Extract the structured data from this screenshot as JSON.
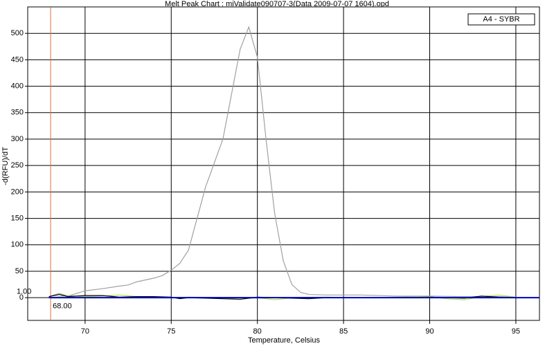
{
  "chart_data": {
    "type": "line",
    "title": "Melt Peak Chart : miValidate090707-3(Data 2009-07-07 1604).opd",
    "xlabel": "Temperature, Celsius",
    "ylabel": "-d(RFU)/dT",
    "xlim": [
      66.67,
      96.37
    ],
    "ylim": [
      -43,
      550
    ],
    "xticks": [
      70,
      75,
      80,
      85,
      90,
      95
    ],
    "yticks": [
      0,
      50,
      100,
      150,
      200,
      250,
      300,
      350,
      400,
      450,
      500
    ],
    "grid": true,
    "legend": "top-right",
    "threshold": {
      "x": 68,
      "x_label": "68.00",
      "y": 1,
      "y_label": "1.00",
      "color": "#e07040"
    },
    "series": [
      {
        "name": "A4 - SYBR",
        "color": "#a0a0a0",
        "x": [
          68,
          68.5,
          69,
          69.5,
          70,
          71,
          72,
          72.5,
          73,
          74,
          74.5,
          75,
          75.5,
          76,
          76.5,
          77,
          77.5,
          78,
          78.5,
          79,
          79.5,
          80,
          80.5,
          81,
          81.5,
          82,
          82.5,
          83,
          84,
          86,
          88,
          90,
          92,
          94,
          95
        ],
        "values": [
          3,
          8,
          3,
          8,
          13,
          17,
          22,
          24,
          30,
          37,
          42,
          52,
          65,
          90,
          150,
          210,
          255,
          300,
          385,
          470,
          512,
          455,
          300,
          160,
          70,
          25,
          10,
          6,
          5,
          5,
          3,
          3,
          2,
          2,
          1
        ]
      },
      {
        "color": "#a8e040",
        "x": [
          68,
          69,
          70,
          71,
          72,
          73,
          74,
          75,
          76,
          78,
          79,
          80,
          81,
          82,
          84,
          86,
          88,
          90,
          91,
          92,
          93,
          94,
          95
        ],
        "values": [
          0,
          4,
          2,
          3,
          5,
          2,
          1,
          0,
          1,
          0,
          -3,
          0,
          -4,
          0,
          1,
          0,
          1,
          2,
          -2,
          -4,
          2,
          5,
          1
        ]
      },
      {
        "color": "#000000",
        "x": [
          67.9,
          68.5,
          69,
          70,
          71,
          72,
          73,
          74,
          75,
          75.5,
          76,
          78,
          79,
          80,
          81,
          82,
          83,
          84,
          86,
          88,
          90,
          92,
          93,
          94,
          95
        ],
        "values": [
          2,
          6,
          2,
          4,
          4,
          1,
          2,
          2,
          1,
          -2,
          0,
          -2,
          -3,
          1,
          0,
          -1,
          -2,
          0,
          0,
          0,
          1,
          -1,
          3,
          1,
          0
        ]
      },
      {
        "color": "#0000c0",
        "x": [
          67.9,
          70,
          75,
          80,
          85,
          90,
          95,
          96.37
        ],
        "values": [
          0,
          0,
          0,
          0,
          0,
          0,
          0,
          0
        ]
      }
    ]
  }
}
